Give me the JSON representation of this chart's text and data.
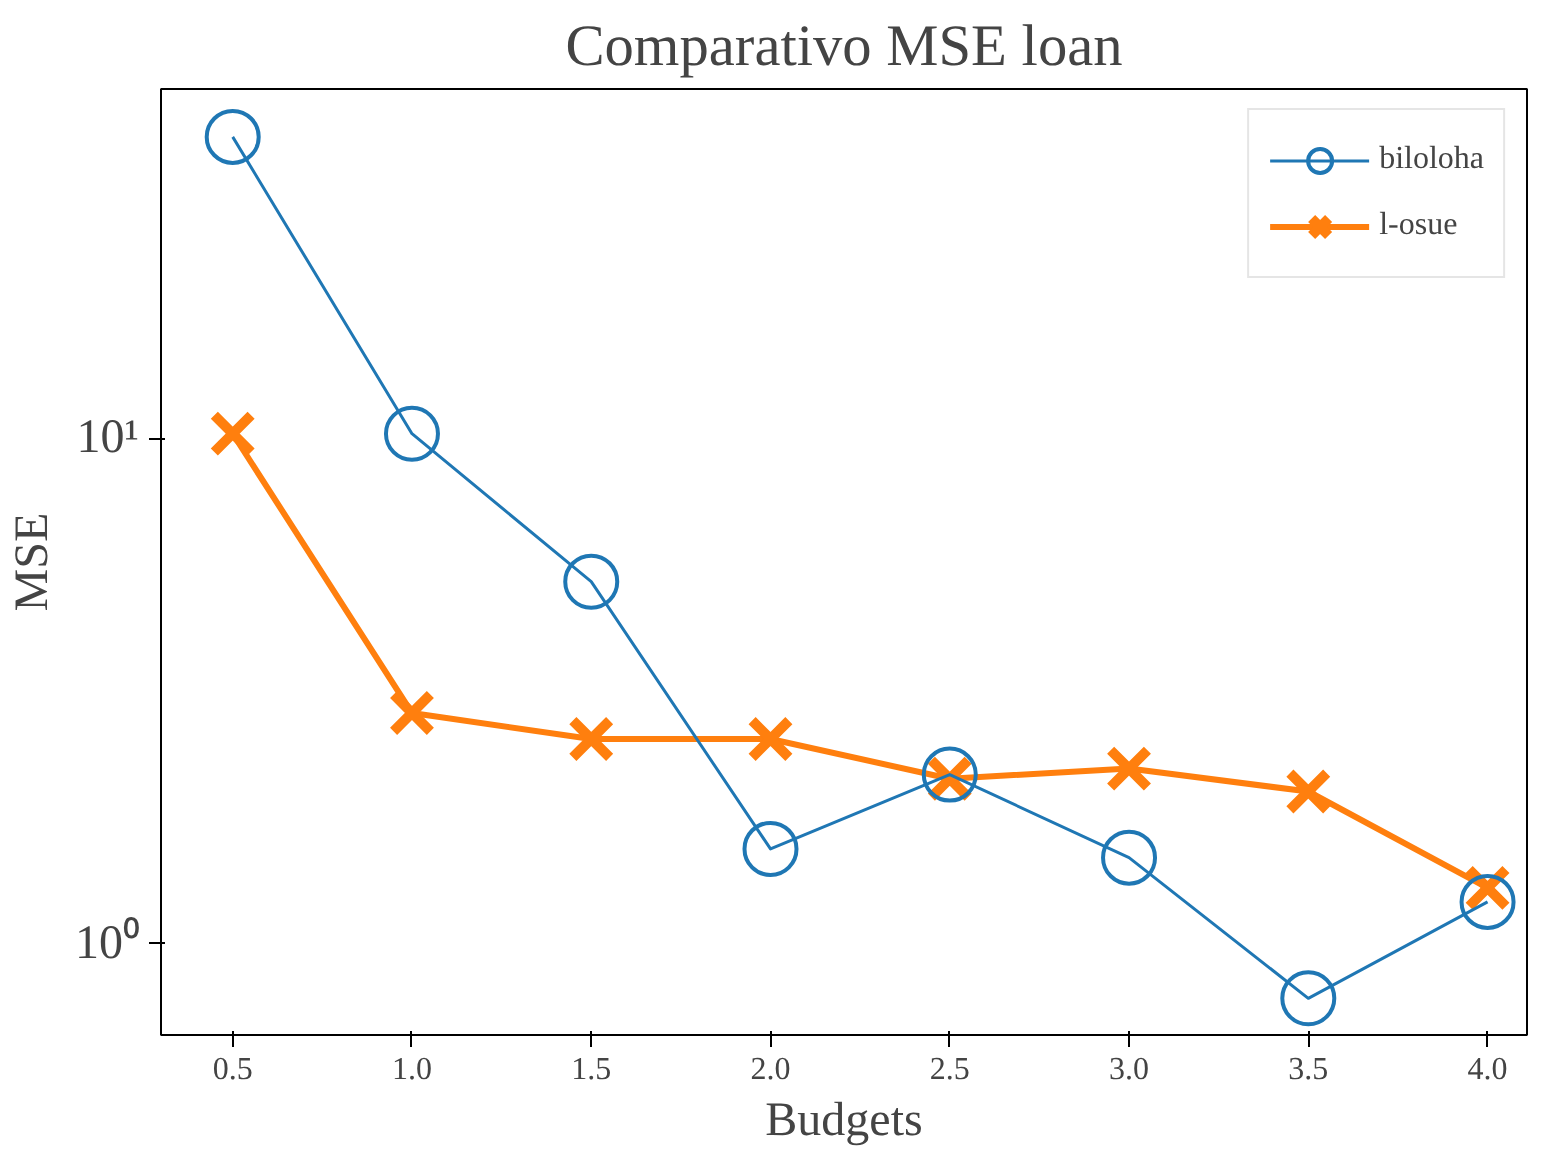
{
  "chart_data": {
    "type": "line",
    "title": "Comparativo MSE loan",
    "xlabel": "Budgets",
    "ylabel": "MSE",
    "log": "y",
    "grid": false,
    "legend": "top right",
    "x": [
      0.5,
      1.0,
      1.5,
      2.0,
      2.5,
      3.0,
      3.5,
      4.0
    ],
    "xlim": [
      0.3,
      4.11
    ],
    "ylim": [
      0.66,
      49
    ],
    "xticks": [
      {
        "value": 0.5,
        "label": "0.5"
      },
      {
        "value": 1.0,
        "label": "1.0"
      },
      {
        "value": 1.5,
        "label": "1.5"
      },
      {
        "value": 2.0,
        "label": "2.0"
      },
      {
        "value": 2.5,
        "label": "2.5"
      },
      {
        "value": 3.0,
        "label": "3.0"
      },
      {
        "value": 3.5,
        "label": "3.5"
      },
      {
        "value": 4.0,
        "label": "4.0"
      }
    ],
    "yticks": [
      {
        "value": 1,
        "label": "10⁰"
      },
      {
        "value": 10,
        "label": "10¹"
      }
    ],
    "series": [
      {
        "name": "biloloha",
        "color": "#1f77b4",
        "marker": "circle",
        "values": [
          39.4,
          10.2,
          5.2,
          1.54,
          2.16,
          1.48,
          0.78,
          1.21
        ]
      },
      {
        "name": "l-osue",
        "color": "#ff7f0e",
        "marker": "cross",
        "values": [
          10.2,
          2.86,
          2.54,
          2.54,
          2.12,
          2.22,
          2.0,
          1.29
        ]
      }
    ]
  }
}
